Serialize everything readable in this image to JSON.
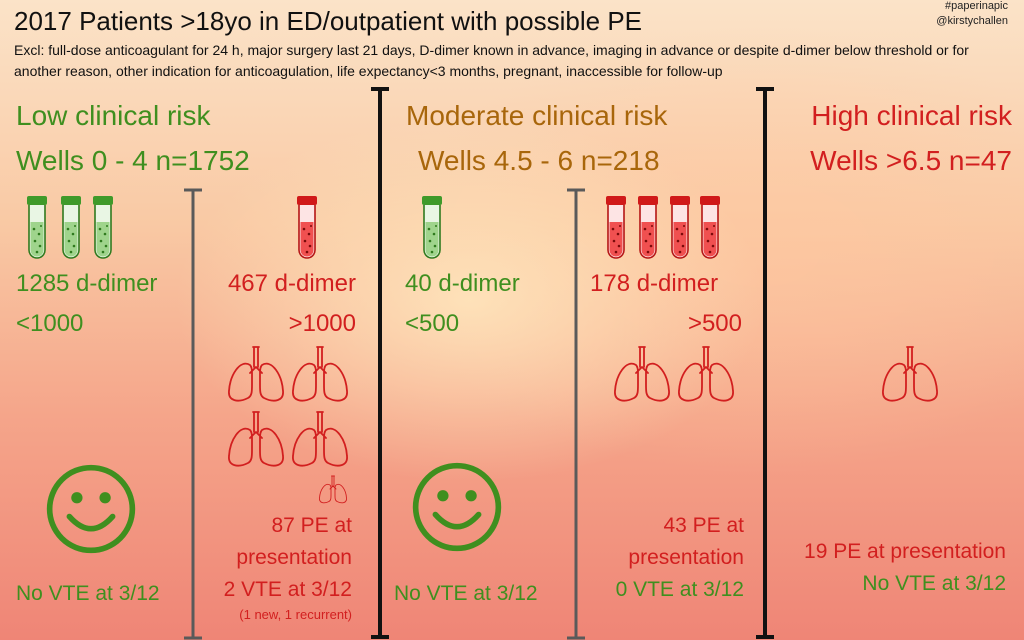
{
  "title": "2017 Patients >18yo in ED/outpatient with possible PE",
  "exclusions": "Excl: full-dose anticoagulant for 24 h, major surgery last 21 days, D-dimer known in advance, imaging in advance or despite d-dimer below threshold or for another reason, other indication for anticoagulation, life expectancy<3 months, pregnant, inaccessible for follow-up",
  "tags": [
    "#paperinapic",
    "@kirstychallen"
  ],
  "colors": {
    "green": "#3f8f1f",
    "orange": "#a8660b",
    "red": "#d21f1f",
    "divider": "#111111",
    "subdivider": "#555555"
  },
  "low": {
    "risk": "Low clinical risk",
    "wells": "Wells 0 - 4 n=1752",
    "neg": {
      "count": "1285 d-dimer",
      "threshold": "<1000",
      "outcome": "No VTE at 3/12"
    },
    "pos": {
      "count": "467 d-dimer",
      "threshold": ">1000",
      "pe1": "87 PE at",
      "pe2": "presentation",
      "vte": "2 VTE at 3/12",
      "note": "(1 new, 1 recurrent)"
    }
  },
  "moderate": {
    "risk": "Moderate clinical risk",
    "wells": "Wells 4.5 - 6 n=218",
    "neg": {
      "count": "40 d-dimer",
      "threshold": "<500",
      "outcome": "No VTE at 3/12"
    },
    "pos": {
      "count": "178 d-dimer",
      "threshold": ">500",
      "pe1": "43 PE at",
      "pe2": "presentation",
      "vte": "0 VTE at 3/12"
    }
  },
  "high": {
    "risk": "High clinical risk",
    "wells": "Wells >6.5  n=47",
    "pe": "19 PE at presentation",
    "vte": "No VTE at 3/12"
  },
  "icons": {
    "tube_negative": "test-tube-green-icon",
    "tube_positive": "test-tube-red-icon",
    "lungs": "lungs-icon",
    "smiley": "smiley-face-icon"
  }
}
